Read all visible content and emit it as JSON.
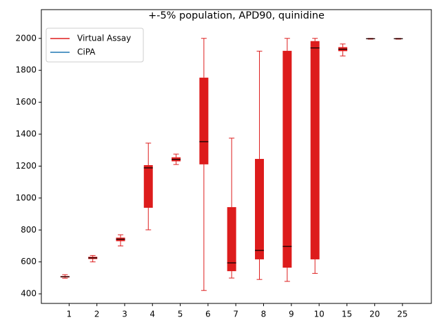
{
  "chart_data": {
    "type": "box",
    "title": "+-5% population, APD90, quinidine",
    "categories": [
      "1",
      "2",
      "3",
      "4",
      "5",
      "6",
      "7",
      "8",
      "9",
      "10",
      "15",
      "20",
      "25"
    ],
    "series": [
      {
        "name": "Virtual Assay",
        "color": "#dd1c1c",
        "median_color": "#000000",
        "min": [
          498,
          600,
          700,
          801,
          1210,
          421,
          499,
          490,
          478,
          528,
          1890,
          1995,
          1995
        ],
        "q1": [
          503,
          618,
          730,
          939,
          1230,
          1211,
          542,
          616,
          564,
          616,
          1920,
          1996,
          1996
        ],
        "median": [
          507,
          625,
          742,
          1189,
          1242,
          1353,
          594,
          672,
          697,
          1940,
          1932,
          1998,
          1998
        ],
        "q3": [
          511,
          632,
          752,
          1206,
          1255,
          1754,
          943,
          1245,
          1922,
          1983,
          1945,
          2000,
          2000
        ],
        "max": [
          520,
          640,
          770,
          1344,
          1275,
          2000,
          1375,
          1920,
          2000,
          2000,
          1965,
          2000,
          2000
        ]
      },
      {
        "name": "CiPA",
        "color": "#1f77b4"
      }
    ],
    "ylim": [
      340,
      2180
    ],
    "yticks": [
      400,
      600,
      800,
      1000,
      1200,
      1400,
      1600,
      1800,
      2000
    ],
    "legend": "upper left"
  }
}
